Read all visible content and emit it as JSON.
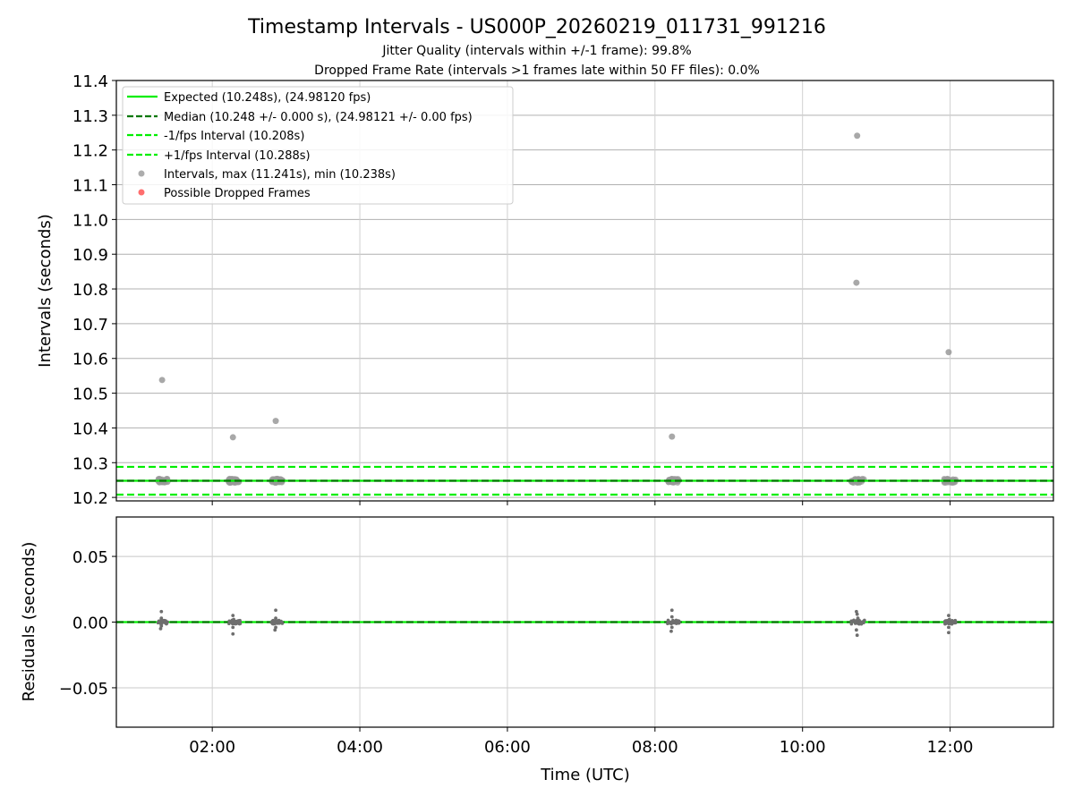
{
  "chart_data": [
    {
      "type": "scatter",
      "title": "Timestamp Intervals - US000P_20260219_011731_991216",
      "subtitle_lines": [
        "Jitter Quality (intervals within +/-1 frame): 99.8%",
        "Dropped Frame Rate (intervals >1 frames late within 50 FF files): 0.0%"
      ],
      "xlabel": "",
      "ylabel": "Intervals (seconds)",
      "xlim_hours": [
        0.7,
        13.4
      ],
      "ylim": [
        10.19,
        11.4
      ],
      "yticks": [
        10.2,
        10.3,
        10.4,
        10.5,
        10.6,
        10.7,
        10.8,
        10.9,
        11.0,
        11.1,
        11.2,
        11.3,
        11.4
      ],
      "ytick_labels": [
        "10.2",
        "10.3",
        "10.4",
        "10.5",
        "10.6",
        "10.7",
        "10.8",
        "10.9",
        "11.0",
        "11.1",
        "11.2",
        "11.3",
        "11.4"
      ],
      "xticks_hours": [
        2,
        4,
        6,
        8,
        10,
        12
      ],
      "grid": true,
      "legend_position": "top-left",
      "legend": [
        {
          "label": "Expected (10.248s), (24.98120 fps)",
          "style": "solid-line",
          "color": "#00ee00"
        },
        {
          "label": "Median (10.248 +/- 0.000 s), (24.98121 +/- 0.00 fps)",
          "style": "dashed-line",
          "color": "#007700"
        },
        {
          "label": "-1/fps Interval (10.208s)",
          "style": "dashed-line",
          "color": "#00ee00"
        },
        {
          "label": "+1/fps Interval (10.288s)",
          "style": "dashed-line",
          "color": "#00ee00"
        },
        {
          "label": "Intervals, max (11.241s), min (10.238s)",
          "style": "marker",
          "color": "#999999"
        },
        {
          "label": "Possible Dropped Frames",
          "style": "marker",
          "color": "#ff5555"
        }
      ],
      "reference_lines": {
        "expected": 10.248,
        "median": 10.248,
        "minus_one_frame": 10.208,
        "plus_one_frame": 10.288
      },
      "clusters": [
        {
          "center_hour": 1.33,
          "spread_hours": 0.07,
          "base": 10.248
        },
        {
          "center_hour": 2.3,
          "spread_hours": 0.08,
          "base": 10.248
        },
        {
          "center_hour": 2.88,
          "spread_hours": 0.08,
          "base": 10.248
        },
        {
          "center_hour": 8.25,
          "spread_hours": 0.08,
          "base": 10.248
        },
        {
          "center_hour": 10.75,
          "spread_hours": 0.09,
          "base": 10.248
        },
        {
          "center_hour": 12.0,
          "spread_hours": 0.08,
          "base": 10.248
        }
      ],
      "outliers": [
        {
          "hour": 1.32,
          "value": 10.538
        },
        {
          "hour": 2.28,
          "value": 10.373
        },
        {
          "hour": 2.86,
          "value": 10.42
        },
        {
          "hour": 8.23,
          "value": 10.375
        },
        {
          "hour": 10.73,
          "value": 10.818
        },
        {
          "hour": 10.74,
          "value": 11.241
        },
        {
          "hour": 11.98,
          "value": 10.618
        }
      ]
    },
    {
      "type": "scatter",
      "xlabel": "Time (UTC)",
      "ylabel": "Residuals (seconds)",
      "xlim_hours": [
        0.7,
        13.4
      ],
      "ylim": [
        -0.08,
        0.08
      ],
      "yticks": [
        -0.05,
        0.0,
        0.05
      ],
      "ytick_labels": [
        "−0.05",
        "0.00",
        "0.05"
      ],
      "xticks_hours": [
        2,
        4,
        6,
        8,
        10,
        12
      ],
      "xtick_labels": [
        "02:00",
        "04:00",
        "06:00",
        "08:00",
        "10:00",
        "12:00"
      ],
      "grid": true,
      "reference_lines": {
        "zero": 0.0
      },
      "clusters": [
        {
          "center_hour": 1.33,
          "spread_hours": 0.07
        },
        {
          "center_hour": 2.3,
          "spread_hours": 0.08
        },
        {
          "center_hour": 2.88,
          "spread_hours": 0.08
        },
        {
          "center_hour": 8.25,
          "spread_hours": 0.08
        },
        {
          "center_hour": 10.75,
          "spread_hours": 0.09
        },
        {
          "center_hour": 12.0,
          "spread_hours": 0.08
        }
      ],
      "residual_points": [
        {
          "hour": 1.31,
          "value": 0.008
        },
        {
          "hour": 1.31,
          "value": 0.003
        },
        {
          "hour": 1.31,
          "value": -0.003
        },
        {
          "hour": 1.3,
          "value": -0.005
        },
        {
          "hour": 2.28,
          "value": 0.005
        },
        {
          "hour": 2.29,
          "value": 0.002
        },
        {
          "hour": 2.28,
          "value": -0.004
        },
        {
          "hour": 2.28,
          "value": -0.009
        },
        {
          "hour": 2.86,
          "value": 0.009
        },
        {
          "hour": 2.86,
          "value": 0.003
        },
        {
          "hour": 2.86,
          "value": -0.004
        },
        {
          "hour": 2.85,
          "value": -0.006
        },
        {
          "hour": 8.23,
          "value": 0.009
        },
        {
          "hour": 8.23,
          "value": 0.004
        },
        {
          "hour": 8.23,
          "value": -0.004
        },
        {
          "hour": 8.22,
          "value": -0.007
        },
        {
          "hour": 10.73,
          "value": 0.008
        },
        {
          "hour": 10.74,
          "value": 0.006
        },
        {
          "hour": 10.75,
          "value": 0.003
        },
        {
          "hour": 10.73,
          "value": -0.006
        },
        {
          "hour": 10.74,
          "value": -0.01
        },
        {
          "hour": 11.98,
          "value": 0.005
        },
        {
          "hour": 11.99,
          "value": 0.002
        },
        {
          "hour": 11.98,
          "value": -0.004
        },
        {
          "hour": 11.98,
          "value": -0.008
        }
      ]
    }
  ]
}
